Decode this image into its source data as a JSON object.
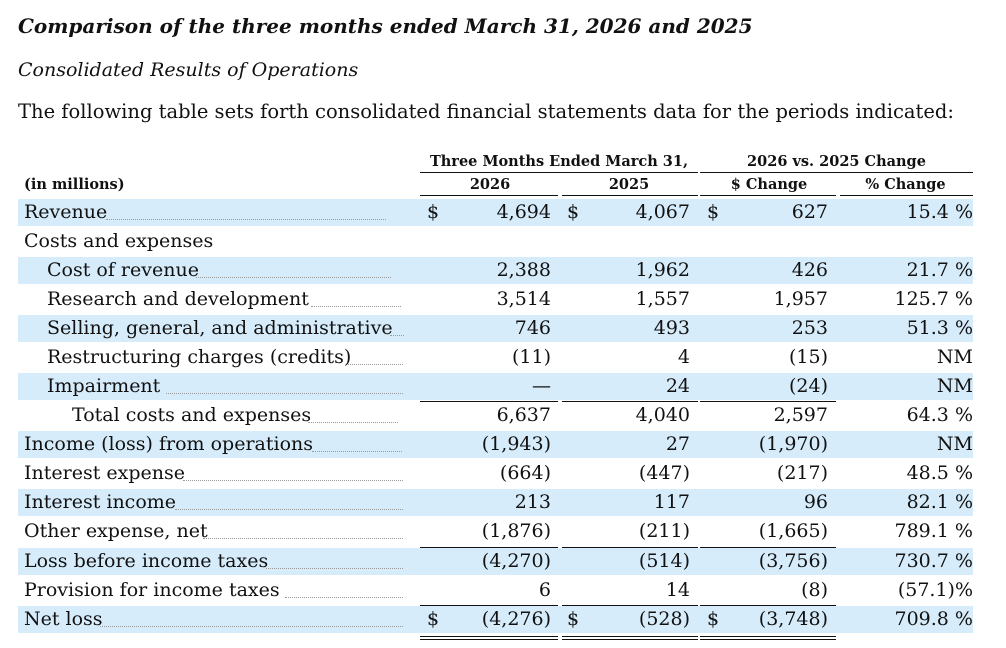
{
  "heading": "Comparison of the three months ended March 31, 2026 and 2025",
  "subheading": "Consolidated Results of Operations",
  "intro": "The following table sets forth consolidated financial statements data for the periods indicated:",
  "table": {
    "group_headers": {
      "period": "Three Months Ended March 31,",
      "change": "2026 vs. 2025 Change"
    },
    "unit_label": "(in millions)",
    "columns": [
      "2026",
      "2025",
      "$ Change",
      "% Change"
    ],
    "rows": [
      {
        "label": "Revenue",
        "v2026": "4,694",
        "v2025": "4,067",
        "dchange": "627",
        "pchange": "15.4 %",
        "currency": "$"
      },
      {
        "label": "Costs and expenses"
      },
      {
        "label": "Cost of revenue",
        "v2026": "2,388",
        "v2025": "1,962",
        "dchange": "426",
        "pchange": "21.7 %"
      },
      {
        "label": "Research and development",
        "v2026": "3,514",
        "v2025": "1,557",
        "dchange": "1,957",
        "pchange": "125.7 %"
      },
      {
        "label": "Selling, general, and administrative",
        "v2026": "746",
        "v2025": "493",
        "dchange": "253",
        "pchange": "51.3 %"
      },
      {
        "label": "Restructuring charges (credits)",
        "v2026": "(11)",
        "v2025": "4",
        "dchange": "(15)",
        "pchange": "NM"
      },
      {
        "label": "Impairment",
        "v2026": "—",
        "v2025": "24",
        "dchange": "(24)",
        "pchange": "NM"
      },
      {
        "label": "Total costs and expenses",
        "v2026": "6,637",
        "v2025": "4,040",
        "dchange": "2,597",
        "pchange": "64.3 %"
      },
      {
        "label": "Income (loss) from operations",
        "v2026": "(1,943)",
        "v2025": "27",
        "dchange": "(1,970)",
        "pchange": "NM"
      },
      {
        "label": "Interest expense",
        "v2026": "(664)",
        "v2025": "(447)",
        "dchange": "(217)",
        "pchange": "48.5 %"
      },
      {
        "label": "Interest income",
        "v2026": "213",
        "v2025": "117",
        "dchange": "96",
        "pchange": "82.1 %"
      },
      {
        "label": "Other expense, net",
        "v2026": "(1,876)",
        "v2025": "(211)",
        "dchange": "(1,665)",
        "pchange": "789.1 %"
      },
      {
        "label": "Loss before income taxes",
        "v2026": "(4,270)",
        "v2025": "(514)",
        "dchange": "(3,756)",
        "pchange": "730.7 %"
      },
      {
        "label": "Provision for income taxes",
        "v2026": "6",
        "v2025": "14",
        "dchange": "(8)",
        "pchange": "(57.1)%"
      },
      {
        "label": "Net loss",
        "v2026": "(4,276)",
        "v2025": "(528)",
        "dchange": "(3,748)",
        "pchange": "709.8 %",
        "currency": "$"
      }
    ]
  },
  "colors": {
    "row_shade": "#d6ecfa",
    "text": "#111111"
  }
}
